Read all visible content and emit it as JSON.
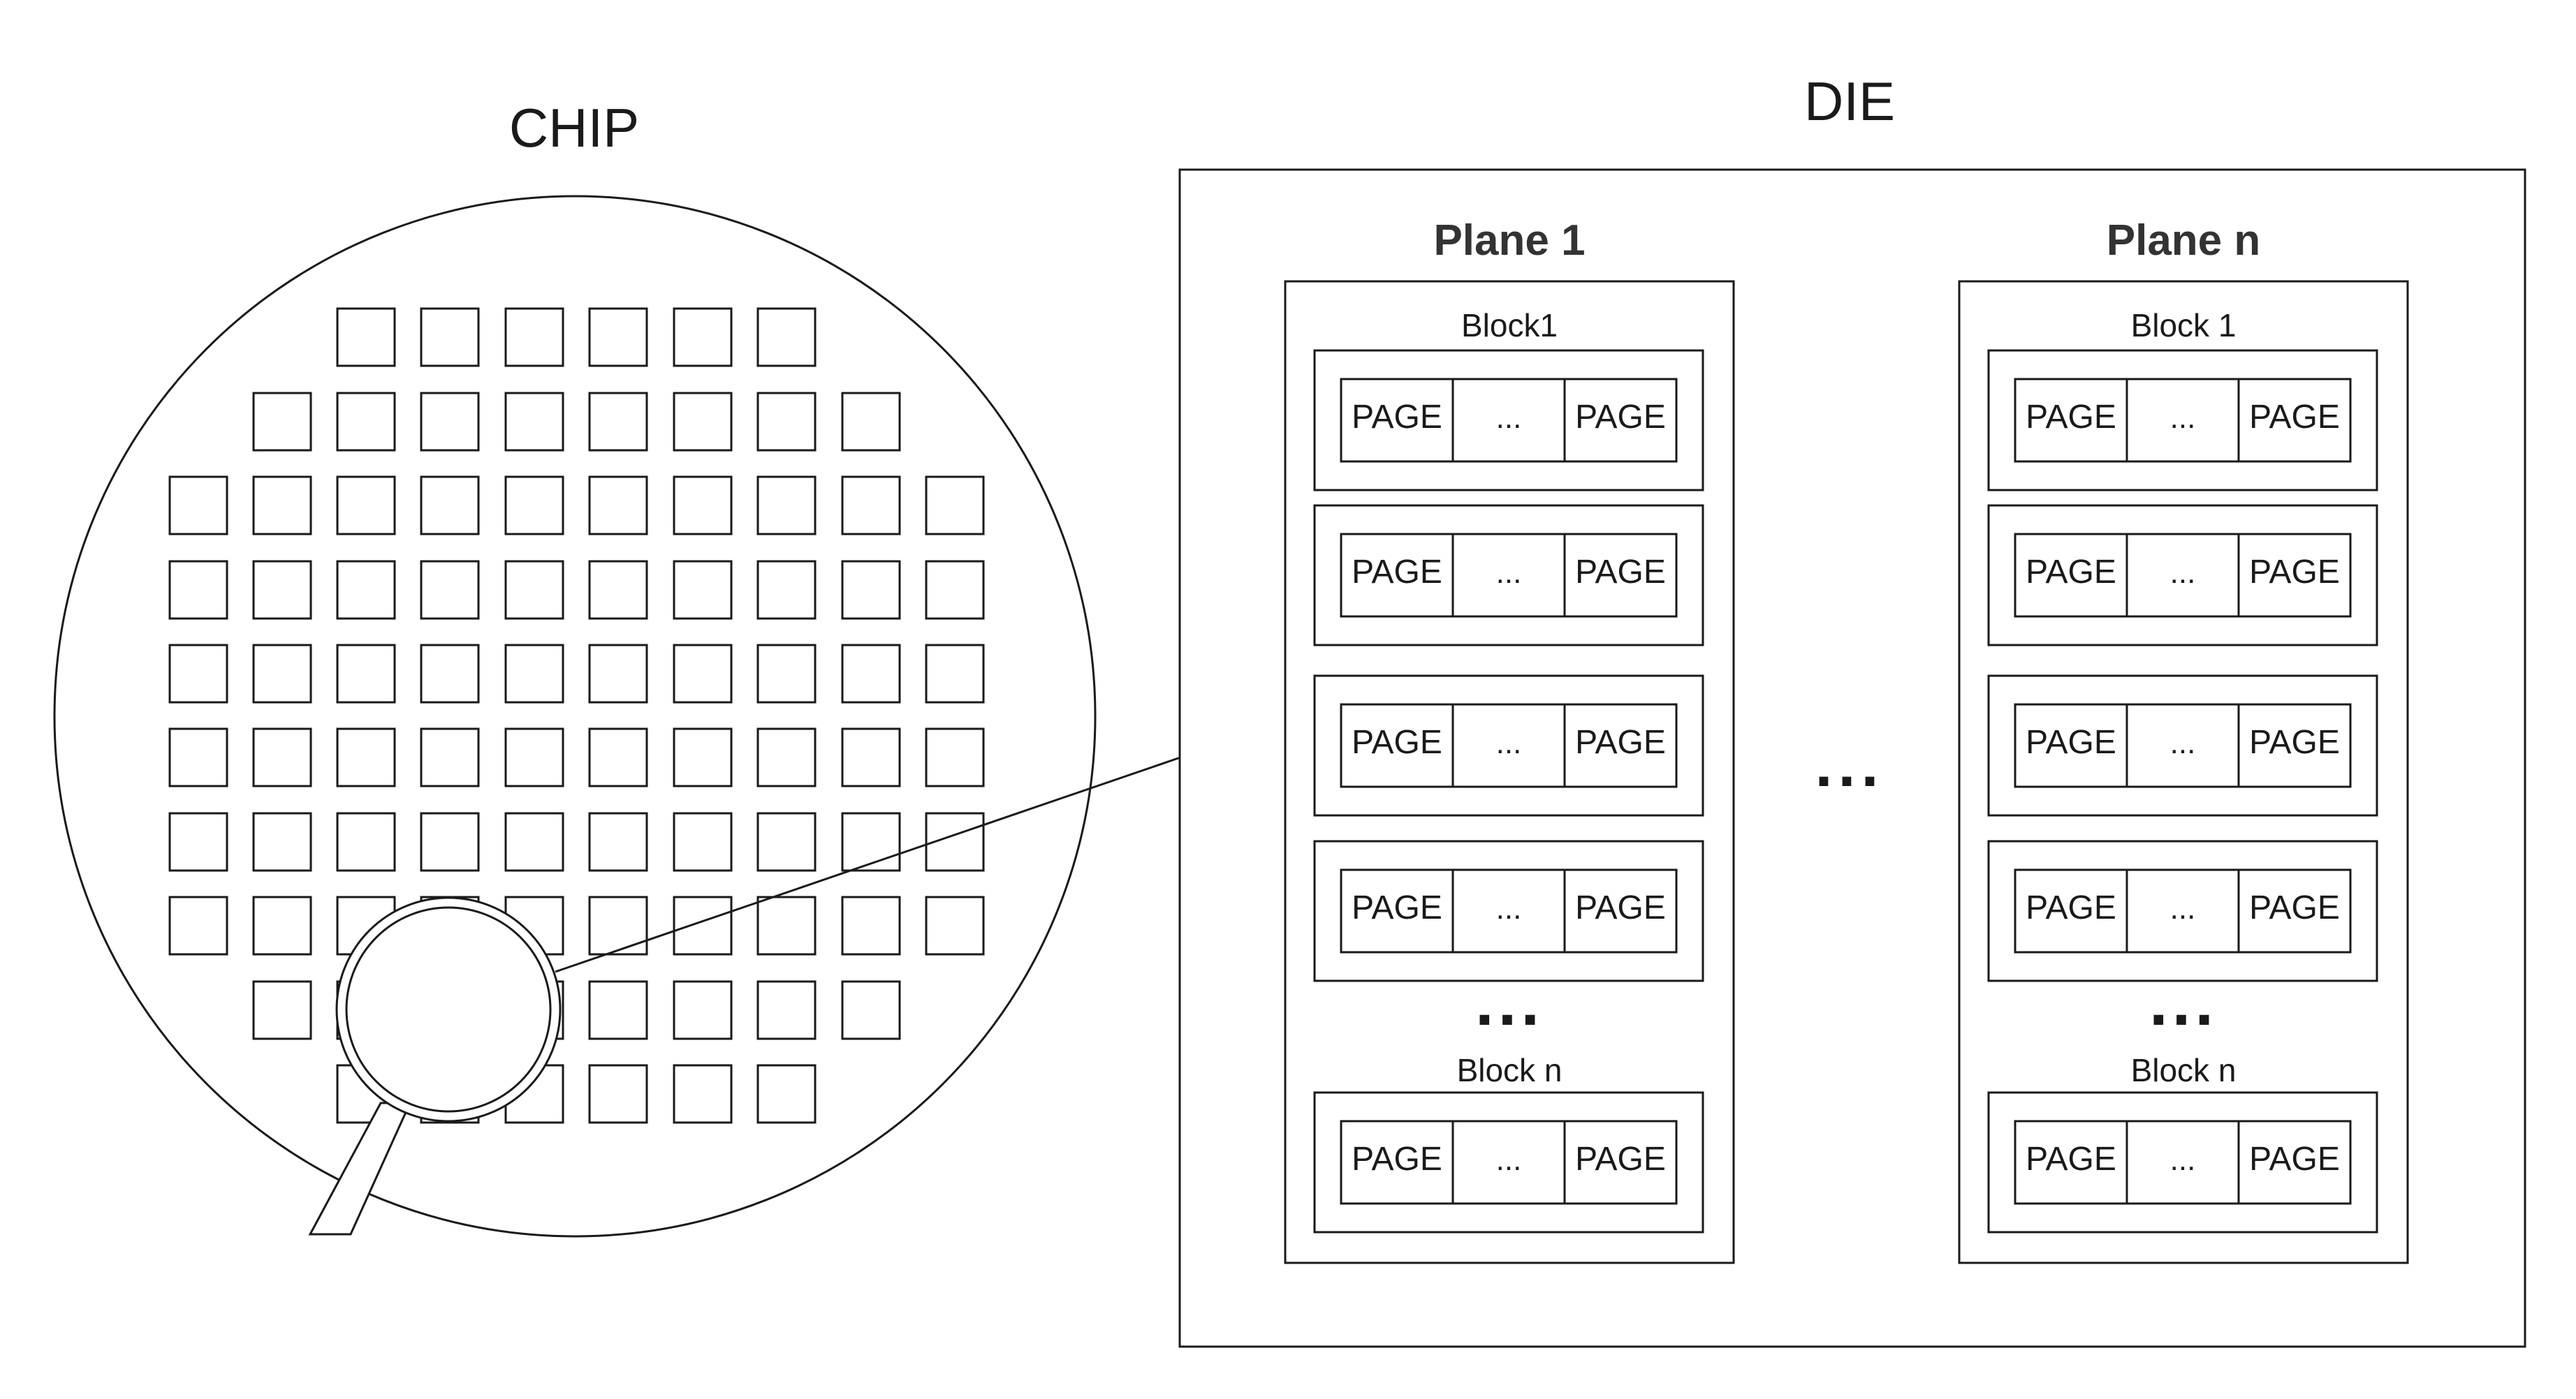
{
  "chip": {
    "title": "CHIP"
  },
  "die": {
    "title": "DIE",
    "between_planes": "...",
    "planes": [
      {
        "title": "Plane 1",
        "first_block_label": "Block1",
        "last_block_label": "Block n",
        "more_blocks": "...",
        "page_label": "PAGE",
        "page_ellipsis": "..."
      },
      {
        "title": "Plane n",
        "first_block_label": "Block 1",
        "last_block_label": "Block n",
        "more_blocks": "...",
        "page_label": "PAGE",
        "page_ellipsis": "..."
      }
    ]
  },
  "colors": {
    "stroke": "#1a1a1a",
    "fill": "#ffffff"
  }
}
